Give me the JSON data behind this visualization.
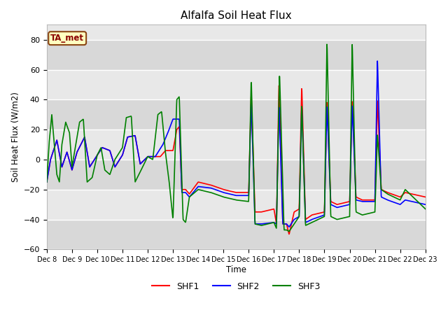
{
  "title": "Alfalfa Soil Heat Flux",
  "ylabel": "Soil Heat Flux (W/m2)",
  "xlabel": "Time",
  "ylim": [
    -60,
    90
  ],
  "yticks": [
    -60,
    -40,
    -20,
    0,
    20,
    40,
    60,
    80
  ],
  "fig_bg_color": "#ffffff",
  "plot_bg_color": "#e8e8e8",
  "band_color": "#d0d0d0",
  "legend_label": "TA_met",
  "series_labels": [
    "SHF1",
    "SHF2",
    "SHF3"
  ],
  "series_colors": [
    "red",
    "blue",
    "green"
  ],
  "x_tick_labels": [
    "Dec 8",
    "Dec 9",
    "Dec 10",
    "Dec 11",
    "Dec 12",
    "Dec 13",
    "Dec 14",
    "Dec 15",
    "Dec 16",
    "Dec 17",
    "Dec 18",
    "Dec 19",
    "Dec 20",
    "Dec 21",
    "Dec 22",
    "Dec 23"
  ]
}
